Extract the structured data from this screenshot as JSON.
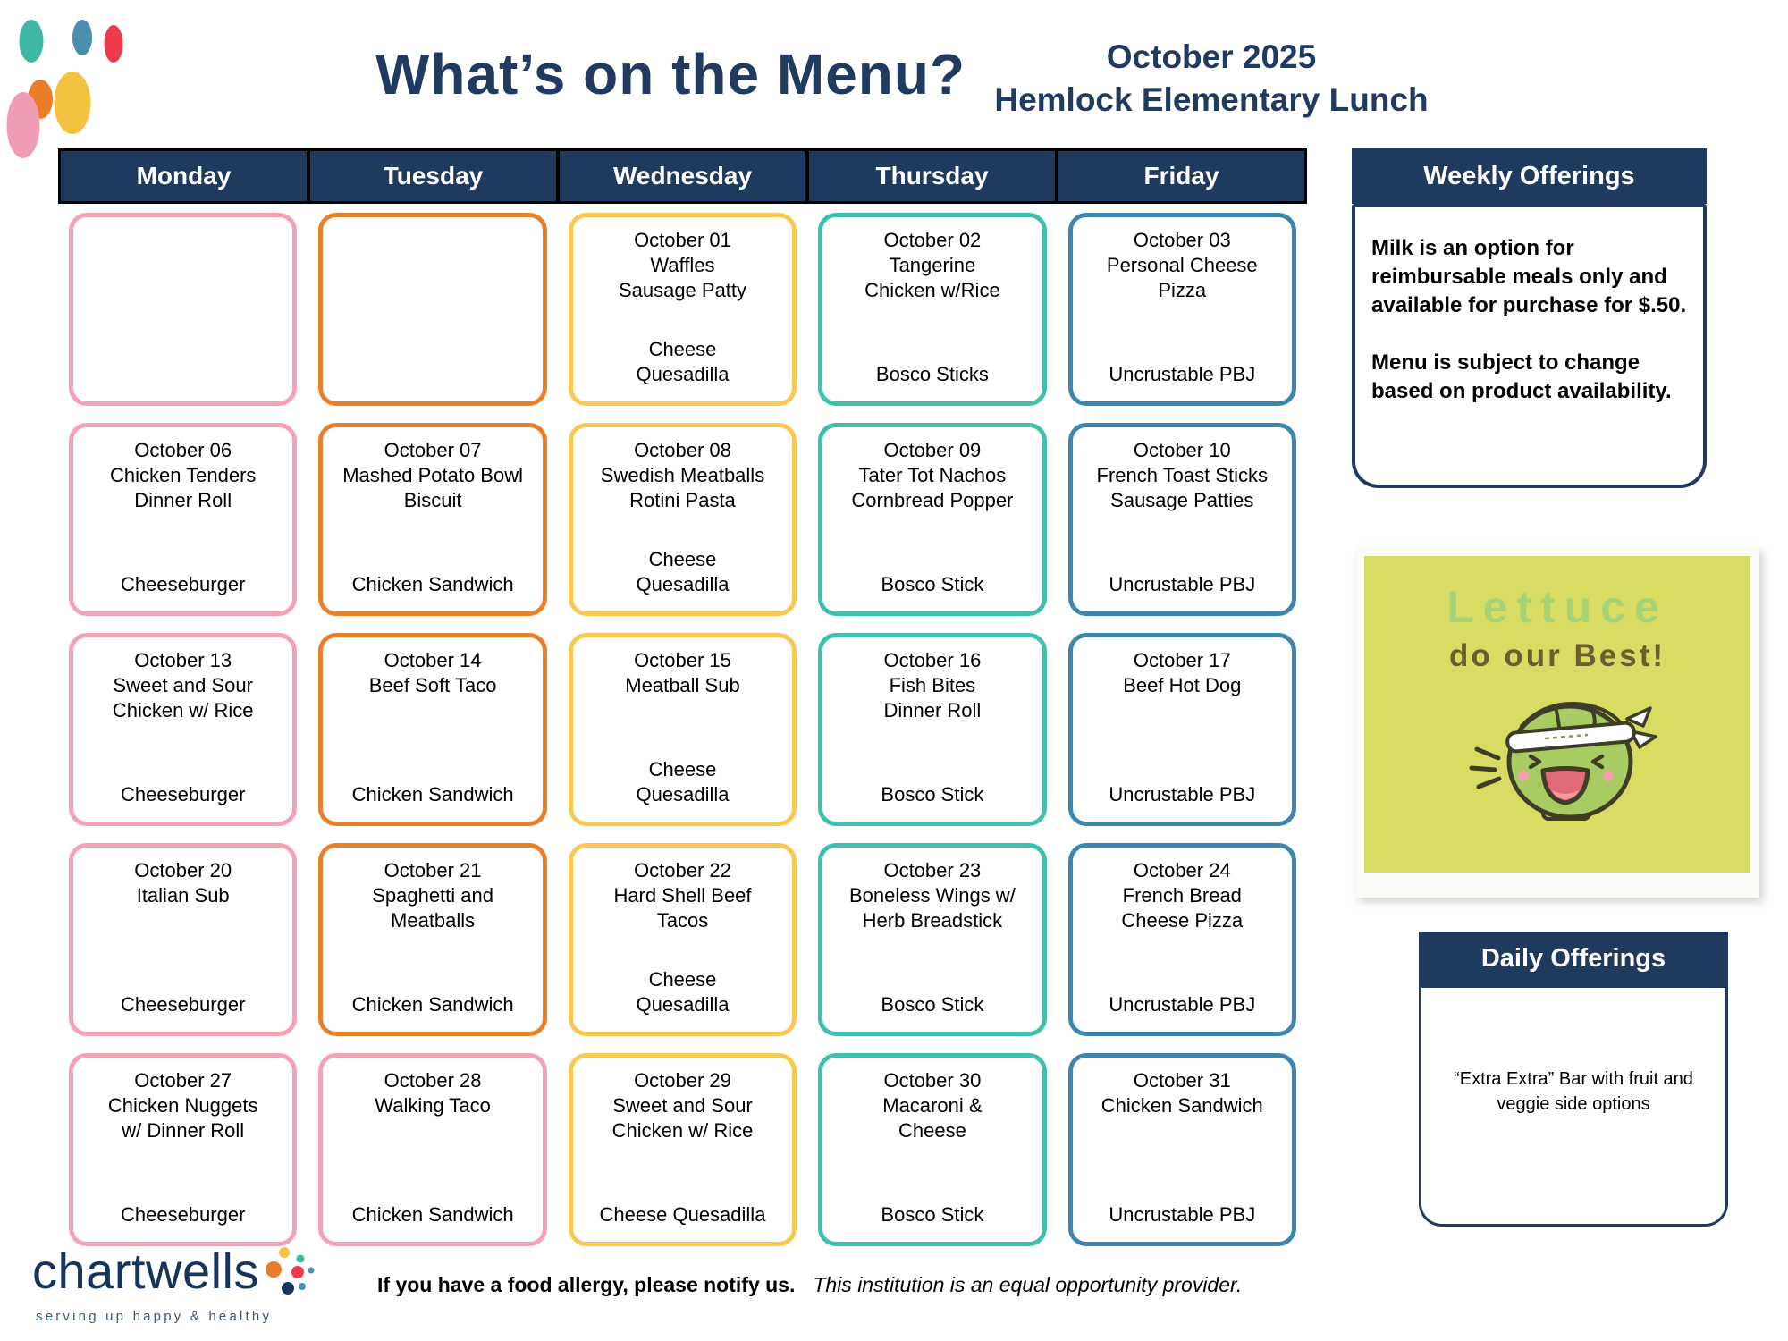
{
  "header": {
    "title": "What’s on the Menu?",
    "month": "October 2025",
    "school": "Hemlock Elementary Lunch"
  },
  "calendar": {
    "day_headers": [
      "Monday",
      "Tuesday",
      "Wednesday",
      "Thursday",
      "Friday"
    ],
    "weeks": [
      {
        "cells": [
          {
            "color": "pink",
            "main": [],
            "alt": []
          },
          {
            "color": "orange",
            "main": [],
            "alt": []
          },
          {
            "color": "yellow",
            "main": [
              "October 01",
              "Waffles",
              "Sausage Patty"
            ],
            "alt": [
              "Cheese",
              "Quesadilla"
            ]
          },
          {
            "color": "teal",
            "main": [
              "October 02",
              "Tangerine",
              "Chicken w/Rice"
            ],
            "alt": [
              "Bosco Sticks"
            ]
          },
          {
            "color": "blue",
            "main": [
              "October 03",
              "Personal Cheese",
              "Pizza"
            ],
            "alt": [
              "Uncrustable PBJ"
            ]
          }
        ]
      },
      {
        "cells": [
          {
            "color": "pink",
            "main": [
              "October 06",
              "Chicken Tenders",
              "Dinner Roll"
            ],
            "alt": [
              "Cheeseburger"
            ]
          },
          {
            "color": "orange",
            "main": [
              "October 07",
              "Mashed Potato Bowl",
              "Biscuit"
            ],
            "alt": [
              "Chicken Sandwich"
            ]
          },
          {
            "color": "yellow",
            "main": [
              "October 08",
              "Swedish Meatballs",
              "Rotini Pasta"
            ],
            "alt": [
              "Cheese",
              "Quesadilla"
            ]
          },
          {
            "color": "teal",
            "main": [
              "October 09",
              "Tater Tot Nachos",
              "Cornbread Popper"
            ],
            "alt": [
              "Bosco Stick"
            ]
          },
          {
            "color": "blue",
            "main": [
              "October 10",
              "French Toast Sticks",
              "Sausage Patties"
            ],
            "alt": [
              "Uncrustable PBJ"
            ]
          }
        ]
      },
      {
        "cells": [
          {
            "color": "pink",
            "main": [
              "October 13",
              "Sweet and Sour",
              "Chicken w/ Rice"
            ],
            "alt": [
              "Cheeseburger"
            ]
          },
          {
            "color": "orange",
            "main": [
              "October 14",
              "Beef Soft Taco"
            ],
            "alt": [
              "Chicken Sandwich"
            ]
          },
          {
            "color": "yellow",
            "main": [
              "October 15",
              "Meatball Sub"
            ],
            "alt": [
              "Cheese",
              "Quesadilla"
            ]
          },
          {
            "color": "teal",
            "main": [
              "October 16",
              "Fish Bites",
              "Dinner Roll"
            ],
            "alt": [
              "Bosco Stick"
            ]
          },
          {
            "color": "blue",
            "main": [
              "October 17",
              "Beef Hot Dog"
            ],
            "alt": [
              "Uncrustable PBJ"
            ]
          }
        ]
      },
      {
        "cells": [
          {
            "color": "pink",
            "main": [
              "October 20",
              "Italian Sub"
            ],
            "alt": [
              "Cheeseburger"
            ]
          },
          {
            "color": "orange",
            "main": [
              "October 21",
              "Spaghetti and",
              "Meatballs"
            ],
            "alt": [
              "Chicken Sandwich"
            ]
          },
          {
            "color": "yellow",
            "main": [
              "October 22",
              "Hard Shell Beef",
              "Tacos"
            ],
            "alt": [
              "Cheese",
              "Quesadilla"
            ]
          },
          {
            "color": "teal",
            "main": [
              "October 23",
              "Boneless Wings w/",
              "Herb Breadstick"
            ],
            "alt": [
              "Bosco Stick"
            ]
          },
          {
            "color": "blue",
            "main": [
              "October 24",
              "French Bread",
              "Cheese Pizza"
            ],
            "alt": [
              "Uncrustable PBJ"
            ]
          }
        ]
      },
      {
        "cells": [
          {
            "color": "pink",
            "main": [
              "October 27",
              "Chicken Nuggets",
              "w/ Dinner Roll"
            ],
            "alt": [
              "Cheeseburger"
            ]
          },
          {
            "color": "pink",
            "main": [
              "October 28",
              "Walking Taco"
            ],
            "alt": [
              "Chicken Sandwich"
            ]
          },
          {
            "color": "yellow",
            "main": [
              "October 29",
              "Sweet and Sour",
              "Chicken w/ Rice"
            ],
            "alt": [
              "Cheese Quesadilla"
            ]
          },
          {
            "color": "teal",
            "main": [
              "October 30",
              "Macaroni &",
              "Cheese"
            ],
            "alt": [
              "Bosco Stick"
            ]
          },
          {
            "color": "blue",
            "main": [
              "October 31",
              "Chicken Sandwich"
            ],
            "alt": [
              "Uncrustable PBJ"
            ]
          }
        ]
      }
    ]
  },
  "weekly_offerings": {
    "title": "Weekly Offerings",
    "paragraphs": [
      "Milk is an option for reimbursable meals only and available for purchase for $.50.",
      "Menu is subject to change based on product availability."
    ]
  },
  "poster": {
    "line1": "Lettuce",
    "line2": "do our Best!"
  },
  "daily_offerings": {
    "title": "Daily Offerings",
    "lines": [
      "“Extra Extra” Bar with fruit and",
      "veggie side options"
    ]
  },
  "footer": {
    "brand": "chartwells",
    "tagline": "serving up happy & healthy",
    "allergy_notice": "If you have a food allergy, please notify us.",
    "equal_opportunity": "This institution is an equal opportunity provider."
  },
  "colors": {
    "navy": "#1E3A5F",
    "title_navy": "#203A60",
    "brand_navy": "#16345C",
    "tagline_blue": "#3D567E",
    "pink": "#F2A3B6",
    "orange": "#E8802A",
    "yellow": "#F8C952",
    "teal": "#41BFAD",
    "blue": "#3F86AE",
    "dot_teal": "#3EB8A4",
    "dot_blue": "#4A8FAD",
    "dot_red": "#EE3B4C",
    "dot_orange": "#E87D2B",
    "dot_yellow": "#F3C23F",
    "dot_pink": "#F09CB4",
    "poster_bg": "#D9DC63",
    "poster_green": "#A7D377",
    "poster_brown": "#6B5D31",
    "cabbage_green": "#A8CB62",
    "cabbage_outline": "#3E3E28",
    "mouth_pink": "#E06A78",
    "tongue_pink": "#F49AA4",
    "blush_pink": "#F2A2AA"
  }
}
